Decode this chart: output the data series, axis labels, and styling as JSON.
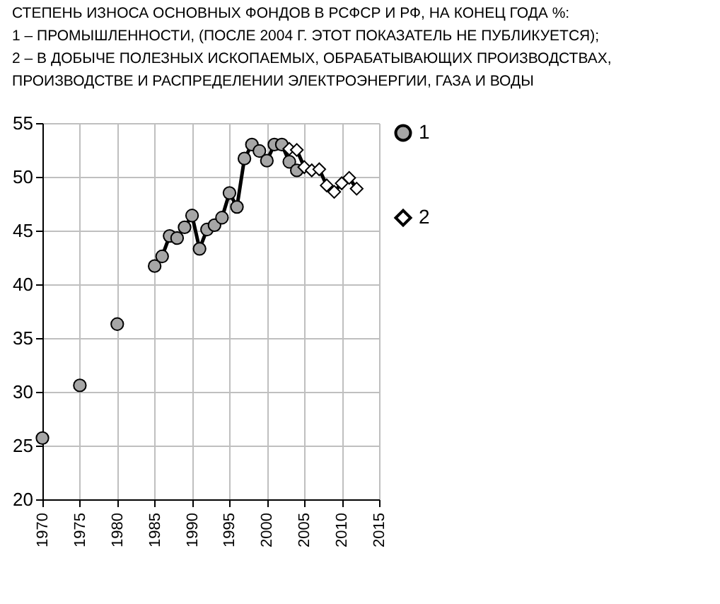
{
  "chart_data": {
    "type": "line",
    "title": "СТЕПЕНЬ ИЗНОСА ОСНОВНЫХ ФОНДОВ В РСФСР И РФ, НА КОНЕЦ ГОДА %:\n1 – ПРОМЫШЛЕННОСТИ, (ПОСЛЕ 2004 Г. ЭТОТ ПОКАЗАТЕЛЬ НЕ ПУБЛИКУЕТСЯ);\n2 – В ДОБЫЧЕ ПОЛЕЗНЫХ ИСКОПАЕМЫХ, ОБРАБАТЫВАЮЩИХ ПРОИЗВОДСТВАХ,\nПРОИЗВОДСТВЕ И  РАСПРЕДЕЛЕНИИ ЭЛЕКТРОЭНЕРГИИ, ГАЗА И ВОДЫ",
    "series": [
      {
        "name": "1",
        "color": "#000000",
        "marker": "circle",
        "x": [
          1970,
          1971,
          1975,
          1976,
          1980,
          1981,
          1985,
          1986,
          1987,
          1988,
          1989,
          1990,
          1991,
          1992,
          1993,
          1994,
          1995,
          1996,
          1997,
          1998,
          1999,
          2000,
          2001,
          2002,
          2003,
          2004
        ],
        "values": [
          25.7,
          null,
          30.6,
          null,
          36.3,
          null,
          41.7,
          42.6,
          44.5,
          44.3,
          45.3,
          46.4,
          43.3,
          45.1,
          45.5,
          46.2,
          48.5,
          47.2,
          51.7,
          53.0,
          52.4,
          51.5,
          53.0,
          53.0,
          51.4,
          50.6
        ]
      },
      {
        "name": "2",
        "color": "#000000",
        "marker": "diamond",
        "x": [
          2003,
          2004,
          2005,
          2006,
          2007,
          2008,
          2009,
          2010,
          2011,
          2012
        ],
        "values": [
          52.6,
          52.5,
          50.9,
          50.6,
          50.7,
          49.2,
          48.6,
          49.4,
          49.9,
          48.9
        ]
      }
    ],
    "xlim": [
      1970,
      2015
    ],
    "xticks": [
      1970,
      1975,
      1980,
      1985,
      1990,
      1995,
      2000,
      2005,
      2010,
      2015
    ],
    "ylim": [
      20,
      55
    ],
    "yticks": [
      20,
      25,
      30,
      35,
      40,
      45,
      50,
      55
    ],
    "grid": true,
    "legend": "right",
    "line_style": "solid"
  }
}
